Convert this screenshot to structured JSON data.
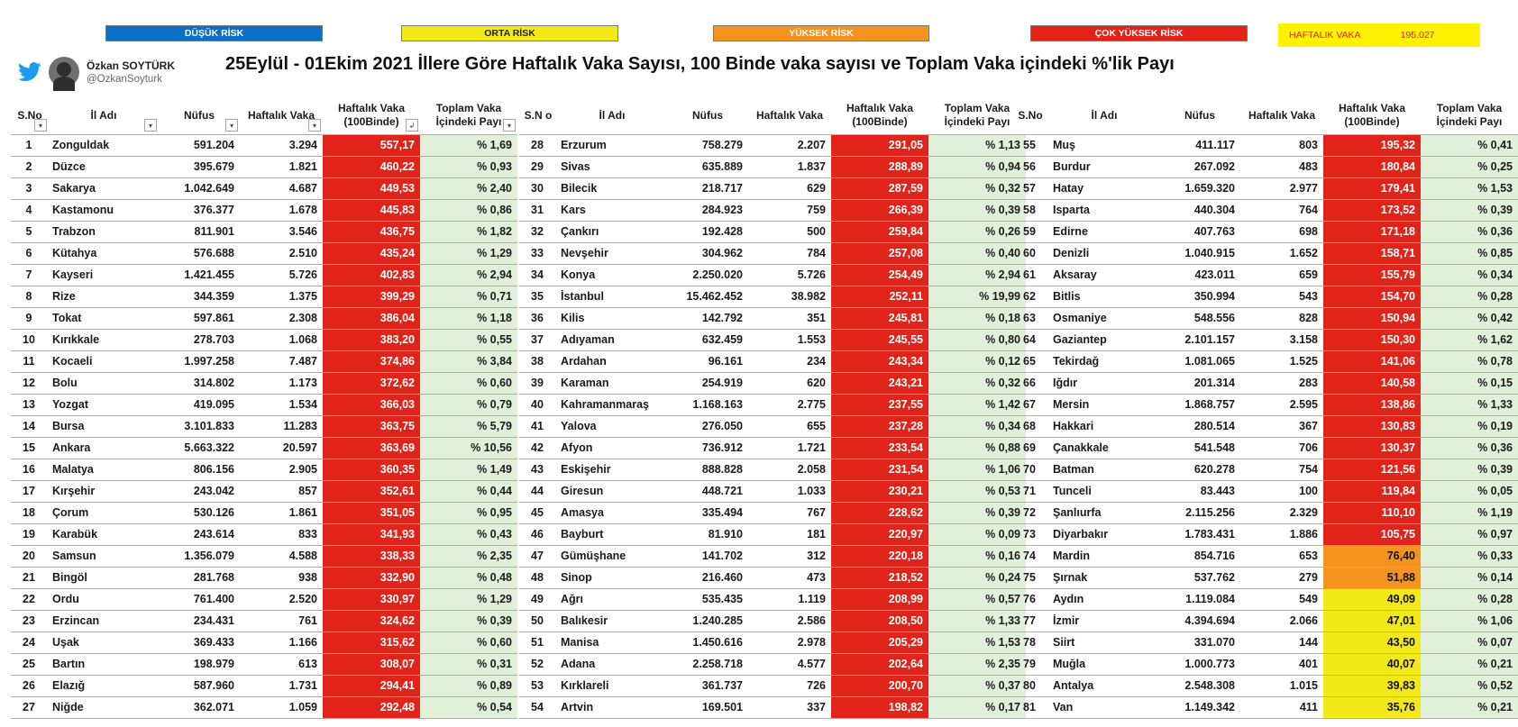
{
  "legend": {
    "low": "DÜŞÜK RİSK",
    "mid": "ORTA RİSK",
    "high": "YÜKSEK RİSK",
    "very_high": "ÇOK YÜKSEK RİSK"
  },
  "weekly_total": {
    "label": "HAFTALIK VAKA",
    "value": "195.027"
  },
  "author": {
    "name": "Özkan SOYTÜRK",
    "handle": "@OzkanSoyturk"
  },
  "title": "25Eylül - 01Ekim 2021  İllere Göre Haftalık Vaka Sayısı, 100 Binde vaka sayısı ve Toplam Vaka içindeki %'lik Payı",
  "colors": {
    "low": "#0b6fc6",
    "mid": "#f3e918",
    "high": "#f6921e",
    "very_high": "#e2231a",
    "share_bg": "#e2efd9"
  },
  "columns": [
    {
      "sno": "S.No",
      "name": "İl Adı",
      "pop": "Nüfus",
      "weekly": "Haftalık Vaka",
      "rate": "Haftalık Vaka (100Binde)",
      "share": "Toplam Vaka İçindeki Payı"
    },
    {
      "sno": "S.N o",
      "name": "İl Adı",
      "pop": "Nüfus",
      "weekly": "Haftalık Vaka",
      "rate": "Haftalık Vaka (100Binde)",
      "share": "Toplam Vaka İçindeki Payı"
    },
    {
      "sno": "S.No",
      "name": "İl Adı",
      "pop": "Nüfus",
      "weekly": "Haftalık Vaka",
      "rate": "Haftalık Vaka (100Binde)",
      "share": "Toplam Vaka İçindeki Payı"
    }
  ],
  "tables": [
    [
      [
        "1",
        "Zonguldak",
        "591.204",
        "3.294",
        "557,17",
        "% 1,69",
        "red"
      ],
      [
        "2",
        "Düzce",
        "395.679",
        "1.821",
        "460,22",
        "% 0,93",
        "red"
      ],
      [
        "3",
        "Sakarya",
        "1.042.649",
        "4.687",
        "449,53",
        "% 2,40",
        "red"
      ],
      [
        "4",
        "Kastamonu",
        "376.377",
        "1.678",
        "445,83",
        "% 0,86",
        "red"
      ],
      [
        "5",
        "Trabzon",
        "811.901",
        "3.546",
        "436,75",
        "% 1,82",
        "red"
      ],
      [
        "6",
        "Kütahya",
        "576.688",
        "2.510",
        "435,24",
        "% 1,29",
        "red"
      ],
      [
        "7",
        "Kayseri",
        "1.421.455",
        "5.726",
        "402,83",
        "% 2,94",
        "red"
      ],
      [
        "8",
        "Rize",
        "344.359",
        "1.375",
        "399,29",
        "% 0,71",
        "red"
      ],
      [
        "9",
        "Tokat",
        "597.861",
        "2.308",
        "386,04",
        "% 1,18",
        "red"
      ],
      [
        "10",
        "Kırıkkale",
        "278.703",
        "1.068",
        "383,20",
        "% 0,55",
        "red"
      ],
      [
        "11",
        "Kocaeli",
        "1.997.258",
        "7.487",
        "374,86",
        "% 3,84",
        "red"
      ],
      [
        "12",
        "Bolu",
        "314.802",
        "1.173",
        "372,62",
        "% 0,60",
        "red"
      ],
      [
        "13",
        "Yozgat",
        "419.095",
        "1.534",
        "366,03",
        "% 0,79",
        "red"
      ],
      [
        "14",
        "Bursa",
        "3.101.833",
        "11.283",
        "363,75",
        "% 5,79",
        "red"
      ],
      [
        "15",
        "Ankara",
        "5.663.322",
        "20.597",
        "363,69",
        "% 10,56",
        "red"
      ],
      [
        "16",
        "Malatya",
        "806.156",
        "2.905",
        "360,35",
        "% 1,49",
        "red"
      ],
      [
        "17",
        "Kırşehir",
        "243.042",
        "857",
        "352,61",
        "% 0,44",
        "red"
      ],
      [
        "18",
        "Çorum",
        "530.126",
        "1.861",
        "351,05",
        "% 0,95",
        "red"
      ],
      [
        "19",
        "Karabük",
        "243.614",
        "833",
        "341,93",
        "% 0,43",
        "red"
      ],
      [
        "20",
        "Samsun",
        "1.356.079",
        "4.588",
        "338,33",
        "% 2,35",
        "red"
      ],
      [
        "21",
        "Bingöl",
        "281.768",
        "938",
        "332,90",
        "% 0,48",
        "red"
      ],
      [
        "22",
        "Ordu",
        "761.400",
        "2.520",
        "330,97",
        "% 1,29",
        "red"
      ],
      [
        "23",
        "Erzincan",
        "234.431",
        "761",
        "324,62",
        "% 0,39",
        "red"
      ],
      [
        "24",
        "Uşak",
        "369.433",
        "1.166",
        "315,62",
        "% 0,60",
        "red"
      ],
      [
        "25",
        "Bartın",
        "198.979",
        "613",
        "308,07",
        "% 0,31",
        "red"
      ],
      [
        "26",
        "Elazığ",
        "587.960",
        "1.731",
        "294,41",
        "% 0,89",
        "red"
      ],
      [
        "27",
        "Niğde",
        "362.071",
        "1.059",
        "292,48",
        "% 0,54",
        "red"
      ]
    ],
    [
      [
        "28",
        "Erzurum",
        "758.279",
        "2.207",
        "291,05",
        "% 1,13",
        "red"
      ],
      [
        "29",
        "Sivas",
        "635.889",
        "1.837",
        "288,89",
        "% 0,94",
        "red"
      ],
      [
        "30",
        "Bilecik",
        "218.717",
        "629",
        "287,59",
        "% 0,32",
        "red"
      ],
      [
        "31",
        "Kars",
        "284.923",
        "759",
        "266,39",
        "% 0,39",
        "red"
      ],
      [
        "32",
        "Çankırı",
        "192.428",
        "500",
        "259,84",
        "% 0,26",
        "red"
      ],
      [
        "33",
        "Nevşehir",
        "304.962",
        "784",
        "257,08",
        "% 0,40",
        "red"
      ],
      [
        "34",
        "Konya",
        "2.250.020",
        "5.726",
        "254,49",
        "% 2,94",
        "red"
      ],
      [
        "35",
        "İstanbul",
        "15.462.452",
        "38.982",
        "252,11",
        "% 19,99",
        "red"
      ],
      [
        "36",
        "Kilis",
        "142.792",
        "351",
        "245,81",
        "% 0,18",
        "red"
      ],
      [
        "37",
        "Adıyaman",
        "632.459",
        "1.553",
        "245,55",
        "% 0,80",
        "red"
      ],
      [
        "38",
        "Ardahan",
        "96.161",
        "234",
        "243,34",
        "% 0,12",
        "red"
      ],
      [
        "39",
        "Karaman",
        "254.919",
        "620",
        "243,21",
        "% 0,32",
        "red"
      ],
      [
        "40",
        "Kahramanmaraş",
        "1.168.163",
        "2.775",
        "237,55",
        "% 1,42",
        "red"
      ],
      [
        "41",
        "Yalova",
        "276.050",
        "655",
        "237,28",
        "% 0,34",
        "red"
      ],
      [
        "42",
        "Afyon",
        "736.912",
        "1.721",
        "233,54",
        "% 0,88",
        "red"
      ],
      [
        "43",
        "Eskişehir",
        "888.828",
        "2.058",
        "231,54",
        "% 1,06",
        "red"
      ],
      [
        "44",
        "Giresun",
        "448.721",
        "1.033",
        "230,21",
        "% 0,53",
        "red"
      ],
      [
        "45",
        "Amasya",
        "335.494",
        "767",
        "228,62",
        "% 0,39",
        "red"
      ],
      [
        "46",
        "Bayburt",
        "81.910",
        "181",
        "220,97",
        "% 0,09",
        "red"
      ],
      [
        "47",
        "Gümüşhane",
        "141.702",
        "312",
        "220,18",
        "% 0,16",
        "red"
      ],
      [
        "48",
        "Sinop",
        "216.460",
        "473",
        "218,52",
        "% 0,24",
        "red"
      ],
      [
        "49",
        "Ağrı",
        "535.435",
        "1.119",
        "208,99",
        "% 0,57",
        "red"
      ],
      [
        "50",
        "Balıkesir",
        "1.240.285",
        "2.586",
        "208,50",
        "% 1,33",
        "red"
      ],
      [
        "51",
        "Manisa",
        "1.450.616",
        "2.978",
        "205,29",
        "% 1,53",
        "red"
      ],
      [
        "52",
        "Adana",
        "2.258.718",
        "4.577",
        "202,64",
        "% 2,35",
        "red"
      ],
      [
        "53",
        "Kırklareli",
        "361.737",
        "726",
        "200,70",
        "% 0,37",
        "red"
      ],
      [
        "54",
        "Artvin",
        "169.501",
        "337",
        "198,82",
        "% 0,17",
        "red"
      ]
    ],
    [
      [
        "55",
        "Muş",
        "411.117",
        "803",
        "195,32",
        "% 0,41",
        "red"
      ],
      [
        "56",
        "Burdur",
        "267.092",
        "483",
        "180,84",
        "% 0,25",
        "red"
      ],
      [
        "57",
        "Hatay",
        "1.659.320",
        "2.977",
        "179,41",
        "% 1,53",
        "red"
      ],
      [
        "58",
        "Isparta",
        "440.304",
        "764",
        "173,52",
        "% 0,39",
        "red"
      ],
      [
        "59",
        "Edirne",
        "407.763",
        "698",
        "171,18",
        "% 0,36",
        "red"
      ],
      [
        "60",
        "Denizli",
        "1.040.915",
        "1.652",
        "158,71",
        "% 0,85",
        "red"
      ],
      [
        "61",
        "Aksaray",
        "423.011",
        "659",
        "155,79",
        "% 0,34",
        "red"
      ],
      [
        "62",
        "Bitlis",
        "350.994",
        "543",
        "154,70",
        "% 0,28",
        "red"
      ],
      [
        "63",
        "Osmaniye",
        "548.556",
        "828",
        "150,94",
        "% 0,42",
        "red"
      ],
      [
        "64",
        "Gaziantep",
        "2.101.157",
        "3.158",
        "150,30",
        "% 1,62",
        "red"
      ],
      [
        "65",
        "Tekirdağ",
        "1.081.065",
        "1.525",
        "141,06",
        "% 0,78",
        "red"
      ],
      [
        "66",
        "Iğdır",
        "201.314",
        "283",
        "140,58",
        "% 0,15",
        "red"
      ],
      [
        "67",
        "Mersin",
        "1.868.757",
        "2.595",
        "138,86",
        "% 1,33",
        "red"
      ],
      [
        "68",
        "Hakkari",
        "280.514",
        "367",
        "130,83",
        "% 0,19",
        "red"
      ],
      [
        "69",
        "Çanakkale",
        "541.548",
        "706",
        "130,37",
        "% 0,36",
        "red"
      ],
      [
        "70",
        "Batman",
        "620.278",
        "754",
        "121,56",
        "% 0,39",
        "red"
      ],
      [
        "71",
        "Tunceli",
        "83.443",
        "100",
        "119,84",
        "% 0,05",
        "red"
      ],
      [
        "72",
        "Şanlıurfa",
        "2.115.256",
        "2.329",
        "110,10",
        "% 1,19",
        "red"
      ],
      [
        "73",
        "Diyarbakır",
        "1.783.431",
        "1.886",
        "105,75",
        "% 0,97",
        "red"
      ],
      [
        "74",
        "Mardin",
        "854.716",
        "653",
        "76,40",
        "% 0,33",
        "orange"
      ],
      [
        "75",
        "Şırnak",
        "537.762",
        "279",
        "51,88",
        "% 0,14",
        "orange"
      ],
      [
        "76",
        "Aydın",
        "1.119.084",
        "549",
        "49,09",
        "% 0,28",
        "yellow"
      ],
      [
        "77",
        "İzmir",
        "4.394.694",
        "2.066",
        "47,01",
        "% 1,06",
        "yellow"
      ],
      [
        "78",
        "Siirt",
        "331.070",
        "144",
        "43,50",
        "% 0,07",
        "yellow"
      ],
      [
        "79",
        "Muğla",
        "1.000.773",
        "401",
        "40,07",
        "% 0,21",
        "yellow"
      ],
      [
        "80",
        "Antalya",
        "2.548.308",
        "1.015",
        "39,83",
        "% 0,52",
        "yellow"
      ],
      [
        "81",
        "Van",
        "1.149.342",
        "411",
        "35,76",
        "% 0,21",
        "yellow"
      ]
    ]
  ]
}
